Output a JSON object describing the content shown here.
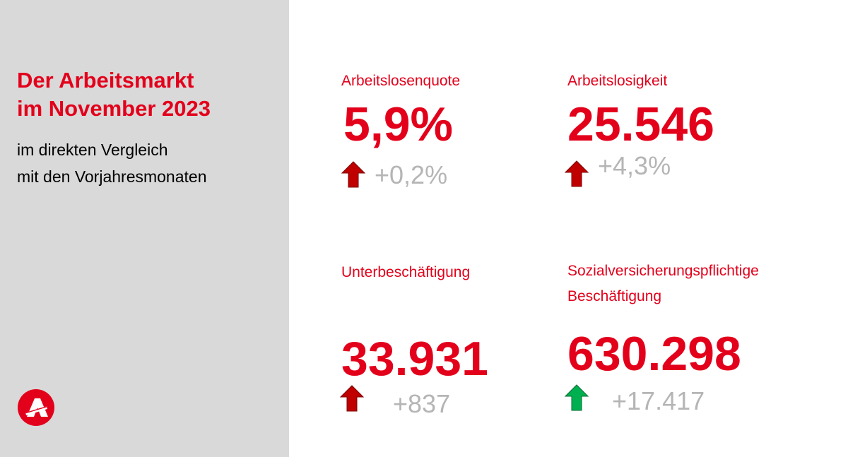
{
  "sidebar": {
    "title_line1": "Der Arbeitsmarkt",
    "title_line2": "im November 2023",
    "subtitle_line1": "im direkten Vergleich",
    "subtitle_line2": "mit den Vorjahresmonaten",
    "logo_icon": "bundesagentur-logo-icon"
  },
  "colors": {
    "accent": "#e3001b",
    "sidebar_bg": "#d9d9d9",
    "change_text": "#b5b5b5",
    "arrow_up_negative": "#c00000",
    "arrow_up_positive": "#00b050"
  },
  "kpis": [
    {
      "label": "Arbeitslosenquote",
      "value": "5,9%",
      "change": "+0,2%",
      "arrow_icon": "arrow-up-red-icon"
    },
    {
      "label": "Arbeitslosigkeit",
      "value": "25.546",
      "change": "+4,3%",
      "arrow_icon": "arrow-up-red-icon"
    },
    {
      "label": "Unterbeschäftigung",
      "value": "33.931",
      "change": "+837",
      "arrow_icon": "arrow-up-red-icon"
    },
    {
      "label_line1": "Sozialversicherungspflichtige",
      "label_line2": "Beschäftigung",
      "value": "630.298",
      "change": "+17.417",
      "arrow_icon": "arrow-up-green-icon"
    }
  ]
}
